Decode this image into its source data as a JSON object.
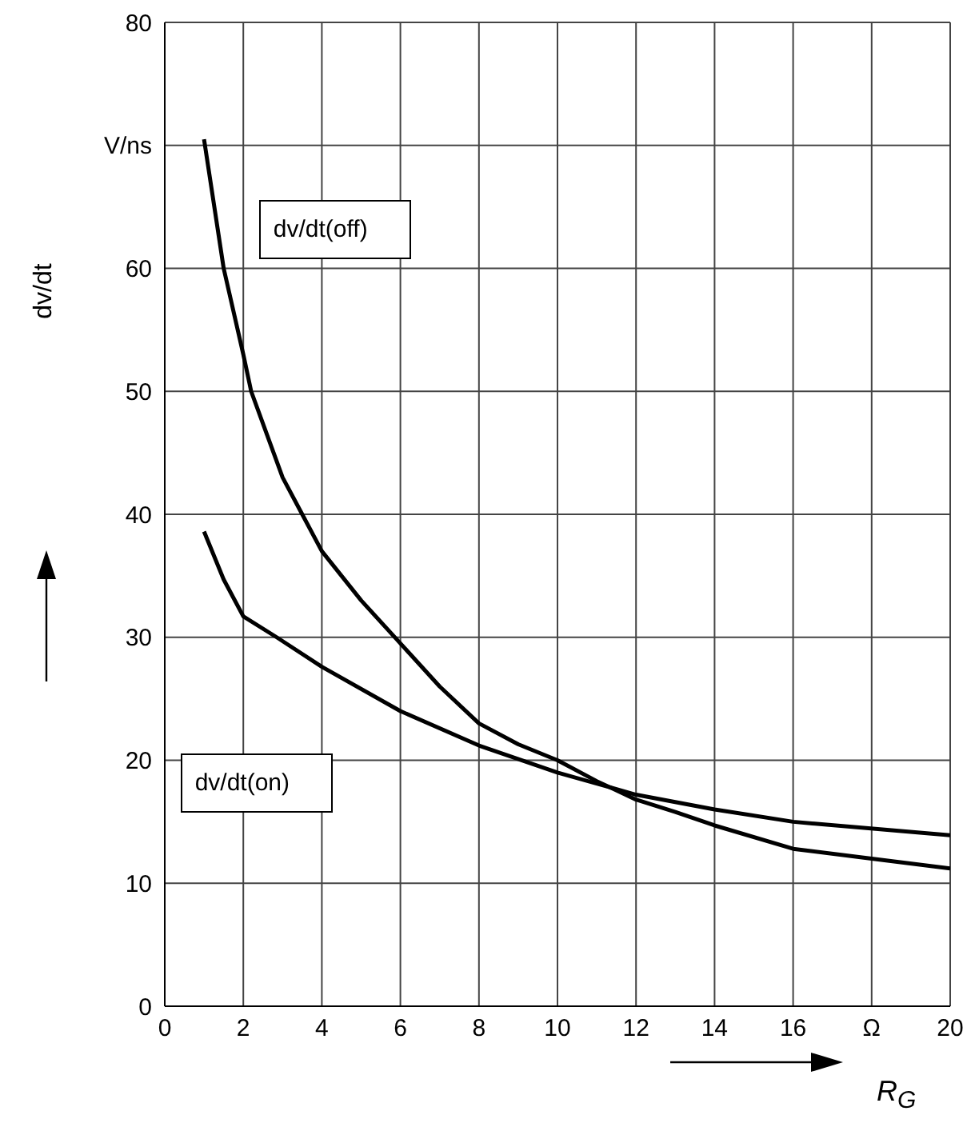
{
  "chart_data": {
    "type": "line",
    "xlabel": "R$_{G}$",
    "ylabel": "dv/dt",
    "xlim": [
      0,
      20
    ],
    "xticks": [
      0,
      2,
      4,
      6,
      8,
      10,
      12,
      14,
      16,
      {
        "value": 18,
        "label": "Ω"
      },
      20
    ],
    "ylim": [
      0,
      80
    ],
    "yticks": [
      0,
      10,
      20,
      30,
      40,
      50,
      60,
      {
        "value": 70,
        "label": "V/ns"
      },
      80
    ],
    "grid": true,
    "legend": false,
    "marker": "none",
    "line_style": "solid",
    "series": [
      {
        "name": "dv/dt(off)",
        "color": "#000000",
        "x": [
          1,
          1.5,
          2,
          2.2,
          3,
          3.5,
          4,
          5,
          6,
          7,
          8,
          9,
          10,
          11,
          12,
          13,
          14,
          16,
          18,
          20
        ],
        "values": [
          70.5,
          60,
          53,
          50,
          43,
          40,
          37,
          33,
          29.5,
          26,
          23,
          21.3,
          20,
          18.3,
          16.8,
          15.8,
          14.7,
          12.8,
          12,
          11.2
        ]
      },
      {
        "name": "dv/dt(on)",
        "color": "#000000",
        "x": [
          1,
          1.5,
          2,
          2.85,
          4,
          6,
          8,
          10,
          12,
          14,
          16,
          20
        ],
        "values": [
          38.6,
          34.7,
          31.7,
          30,
          27.6,
          24,
          21.2,
          19,
          17.2,
          16,
          15,
          13.9
        ]
      }
    ]
  }
}
